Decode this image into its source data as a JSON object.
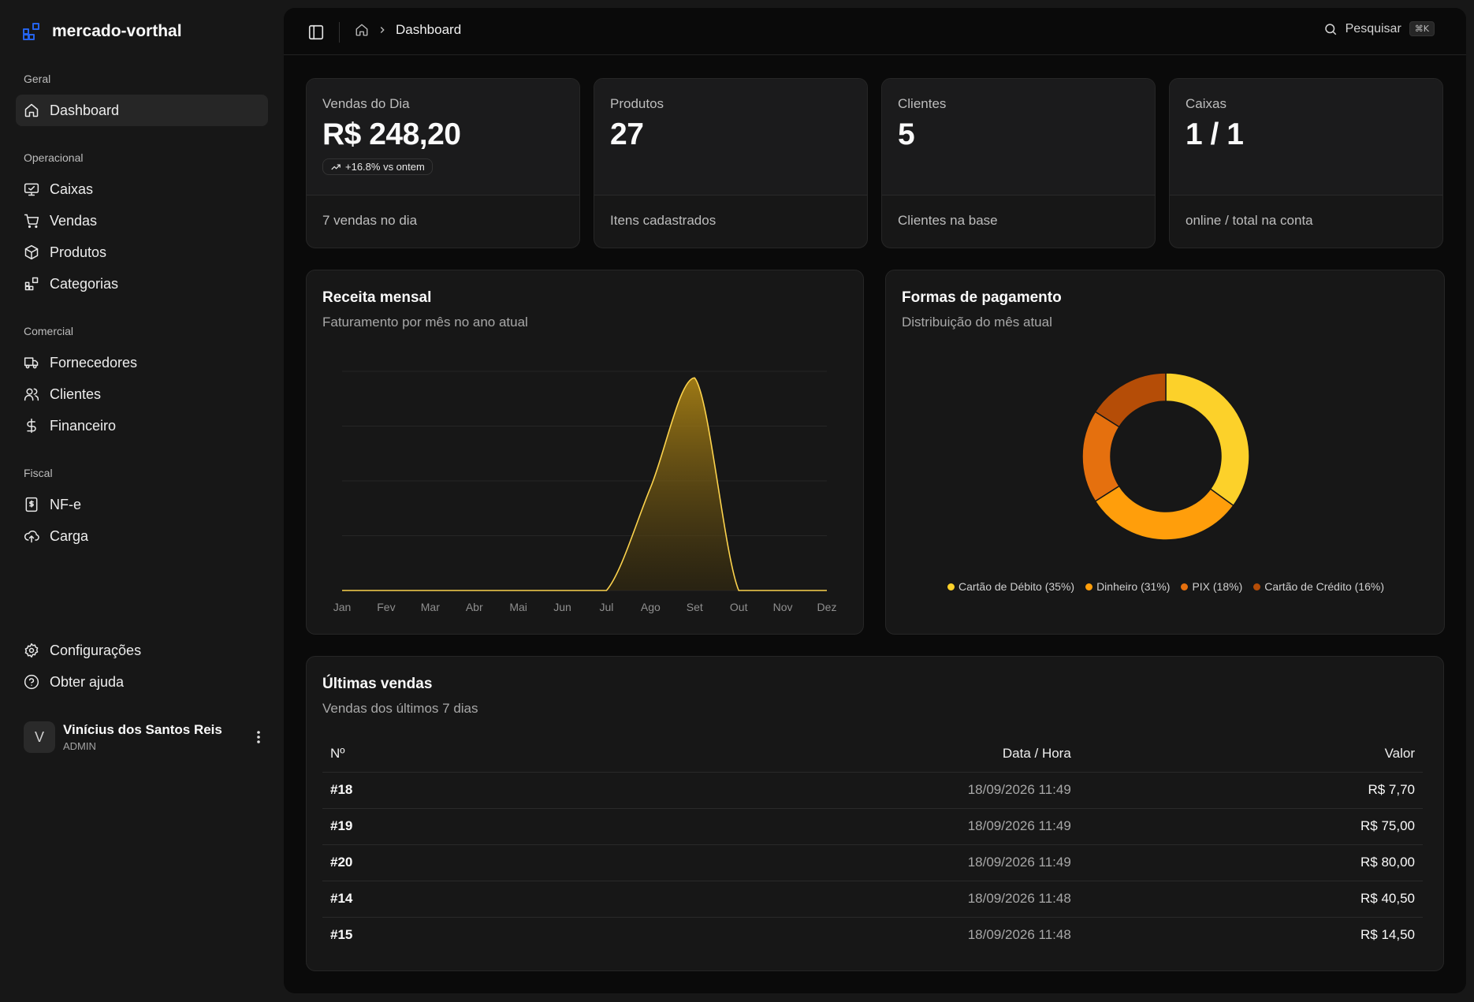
{
  "app": {
    "name": "mercado-vorthal",
    "logo_icon": "blocks-icon",
    "accent": "#2563eb"
  },
  "sidebar": {
    "groups": [
      {
        "label": "Geral",
        "items": [
          {
            "label": "Dashboard",
            "icon": "home-icon",
            "active": true
          }
        ]
      },
      {
        "label": "Operacional",
        "items": [
          {
            "label": "Caixas",
            "icon": "monitor-icon"
          },
          {
            "label": "Vendas",
            "icon": "cart-icon"
          },
          {
            "label": "Produtos",
            "icon": "package-icon"
          },
          {
            "label": "Categorias",
            "icon": "blocks-icon"
          }
        ]
      },
      {
        "label": "Comercial",
        "items": [
          {
            "label": "Fornecedores",
            "icon": "truck-icon"
          },
          {
            "label": "Clientes",
            "icon": "users-icon"
          },
          {
            "label": "Financeiro",
            "icon": "dollar-icon"
          }
        ]
      },
      {
        "label": "Fiscal",
        "items": [
          {
            "label": "NF-e",
            "icon": "receipt-icon"
          },
          {
            "label": "Carga",
            "icon": "cloud-upload-icon"
          }
        ]
      }
    ],
    "footer_items": [
      {
        "label": "Configurações",
        "icon": "gear-icon"
      },
      {
        "label": "Obter ajuda",
        "icon": "help-icon"
      }
    ],
    "user": {
      "initial": "V",
      "name": "Vinícius dos Santos Reis",
      "role": "ADMIN"
    }
  },
  "topbar": {
    "breadcrumb": "Dashboard",
    "search_label": "Pesquisar",
    "search_shortcut": "⌘K"
  },
  "stats": [
    {
      "label": "Vendas do Dia",
      "value": "R$ 248,20",
      "badge": "+16.8% vs ontem",
      "footer": "7 vendas no dia"
    },
    {
      "label": "Produtos",
      "value": "27",
      "footer": "Itens cadastrados"
    },
    {
      "label": "Clientes",
      "value": "5",
      "footer": "Clientes na base"
    },
    {
      "label": "Caixas",
      "value": "1 / 1",
      "footer": "online / total na conta"
    }
  ],
  "revenue": {
    "title": "Receita mensal",
    "subtitle": "Faturamento por mês no ano atual"
  },
  "payments": {
    "title": "Formas de pagamento",
    "subtitle": "Distribuição do mês atual"
  },
  "chart_data": [
    {
      "type": "area",
      "categories": [
        "Jan",
        "Fev",
        "Mar",
        "Abr",
        "Mai",
        "Jun",
        "Jul",
        "Ago",
        "Set",
        "Out",
        "Nov",
        "Dez"
      ],
      "values": [
        0,
        0,
        0,
        0,
        0,
        0,
        0,
        47,
        97,
        0,
        0,
        0
      ],
      "ylim": [
        0,
        100
      ],
      "grid": true,
      "color": "#fcd34d"
    },
    {
      "type": "pie",
      "labels": [
        "Cartão de Débito",
        "Dinheiro",
        "PIX",
        "Cartão de Crédito"
      ],
      "values": [
        35,
        31,
        18,
        16
      ],
      "legend_texts": [
        "Cartão de Débito (35%)",
        "Dinheiro (31%)",
        "PIX (18%)",
        "Cartão de Crédito (16%)"
      ],
      "colors": [
        "#fcd12a",
        "#ff9e0b",
        "#e5700e",
        "#b54d07"
      ],
      "legend": "bottom"
    }
  ],
  "sales": {
    "title": "Últimas vendas",
    "subtitle": "Vendas dos últimos 7 dias",
    "columns": [
      "Nº",
      "Data / Hora",
      "Valor"
    ],
    "rows": [
      {
        "id": "#18",
        "date": "18/09/2026 11:49",
        "value": "R$ 7,70"
      },
      {
        "id": "#19",
        "date": "18/09/2026 11:49",
        "value": "R$ 75,00"
      },
      {
        "id": "#20",
        "date": "18/09/2026 11:49",
        "value": "R$ 80,00"
      },
      {
        "id": "#14",
        "date": "18/09/2026 11:48",
        "value": "R$ 40,50"
      },
      {
        "id": "#15",
        "date": "18/09/2026 11:48",
        "value": "R$ 14,50"
      }
    ]
  }
}
